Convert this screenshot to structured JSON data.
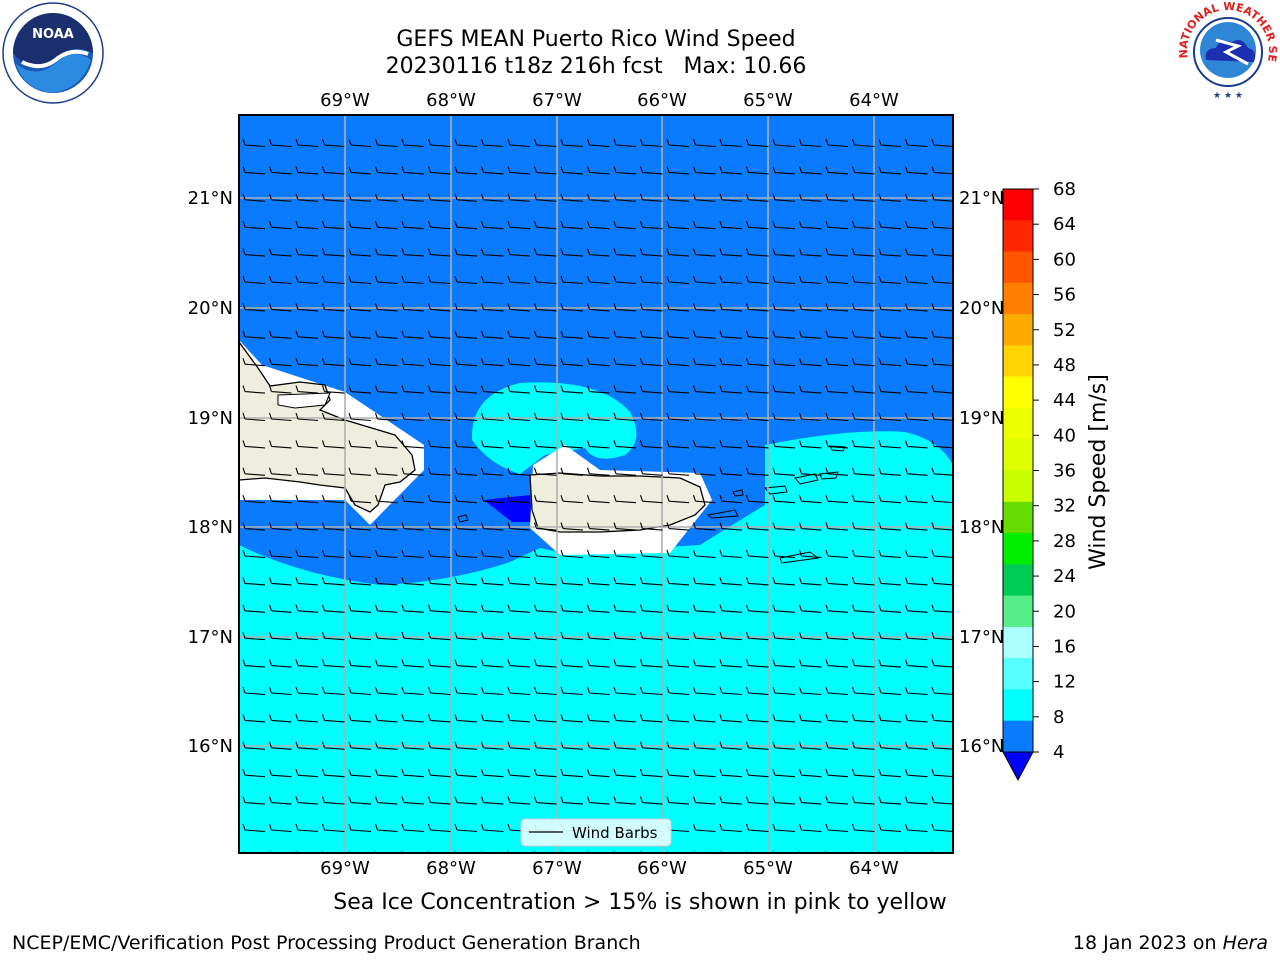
{
  "header": {
    "title_line1": "GEFS MEAN Puerto Rico Wind Speed",
    "title_line2": "20230116 t18z 216h fcst   Max: 10.66"
  },
  "logos": {
    "left": "noaa-logo",
    "left_text": "NOAA",
    "right": "nws-logo",
    "right_text": "NATIONAL WEATHER SERVICE"
  },
  "map": {
    "lon_labels": [
      "69°W",
      "68°W",
      "67°W",
      "66°W",
      "65°W",
      "64°W"
    ],
    "lat_labels": [
      "21°N",
      "20°N",
      "19°N",
      "18°N",
      "17°N",
      "16°N"
    ],
    "legend_label": "Wind Barbs",
    "colors": {
      "ocean_low": "#0a7bff",
      "ocean_mid": "#00ffff",
      "ocean_min": "#0000ff",
      "land": "#efedde",
      "grid": "#b0b0b0"
    }
  },
  "colorbar": {
    "label": "Wind Speed [m/s]",
    "ticks": [
      "68",
      "64",
      "60",
      "56",
      "52",
      "48",
      "44",
      "40",
      "36",
      "32",
      "28",
      "24",
      "20",
      "16",
      "12",
      "8",
      "4"
    ],
    "bands_top_to_bottom": [
      "#ff0000",
      "#ff2600",
      "#ff5500",
      "#ff8000",
      "#ffaa00",
      "#ffd400",
      "#ffff00",
      "#eeff00",
      "#ddff00",
      "#c8ff00",
      "#66dd00",
      "#00ee00",
      "#00cc55",
      "#55ee88",
      "#aaffff",
      "#55ffff",
      "#00ffff",
      "#0a7bff"
    ],
    "under_color": "#0000ff"
  },
  "caption": "Sea Ice Concentration > 15% is shown in pink to yellow",
  "footer": {
    "left": "NCEP/EMC/Verification Post Processing Product Generation Branch",
    "right_prefix": "18 Jan 2023 on ",
    "right_host": "Hera"
  }
}
